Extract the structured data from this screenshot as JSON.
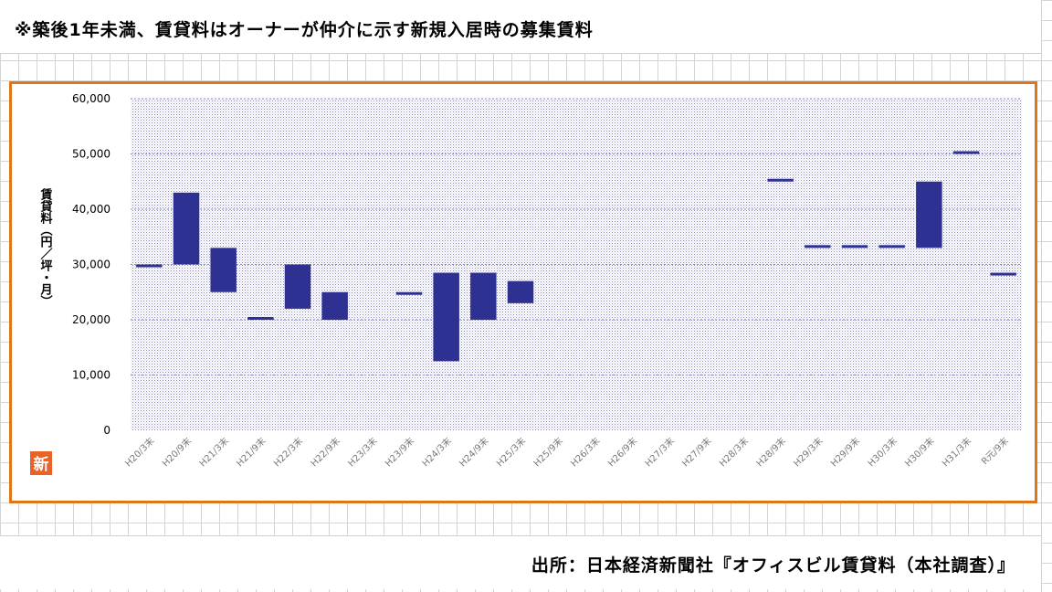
{
  "header": {
    "note": "※築後1年未満、賃貸料はオーナーが仲介に示す新規入居時の募集賃料"
  },
  "footer": {
    "source": "出所：日本経済新聞社『オフィスビル賃貸料（本社調査）』"
  },
  "badge": {
    "text": "新",
    "color": "#e8632a"
  },
  "colors": {
    "bar": "#2e3192",
    "frame": "#e0761a",
    "plot_dots": "#8c8cc8"
  },
  "chart_data": {
    "type": "bar",
    "subtype": "floating-range",
    "ylabel": "賃貸料（円／坪・月）",
    "ylim": [
      0,
      60000
    ],
    "yticks": [
      0,
      10000,
      20000,
      30000,
      40000,
      50000,
      60000
    ],
    "ytick_labels": [
      "0",
      "10,000",
      "20,000",
      "30,000",
      "40,000",
      "50,000",
      "60,000"
    ],
    "grid": true,
    "categories": [
      "H20/3末",
      "H20/9末",
      "H21/3末",
      "H21/9末",
      "H22/3末",
      "H22/9末",
      "H23/3末",
      "H23/9末",
      "H24/3末",
      "H24/9末",
      "H25/3末",
      "H25/9末",
      "H26/3末",
      "H26/9末",
      "H27/3末",
      "H27/9末",
      "H28/3末",
      "H28/9末",
      "H29/3末",
      "H29/9末",
      "H30/3末",
      "H30/9末",
      "H31/3末",
      "R元/9末"
    ],
    "ranges": [
      [
        29500,
        30000
      ],
      [
        30000,
        43000
      ],
      [
        25000,
        33000
      ],
      [
        20000,
        20500
      ],
      [
        22000,
        30000
      ],
      [
        20000,
        25000
      ],
      null,
      [
        24500,
        25000
      ],
      [
        12500,
        28500
      ],
      [
        20000,
        28500
      ],
      [
        23000,
        27000
      ],
      null,
      null,
      null,
      null,
      null,
      null,
      [
        45000,
        45500
      ],
      [
        33000,
        33500
      ],
      [
        33000,
        33500
      ],
      [
        33000,
        33500
      ],
      [
        33000,
        45000
      ],
      [
        50000,
        50500
      ],
      [
        28000,
        28500
      ]
    ]
  }
}
